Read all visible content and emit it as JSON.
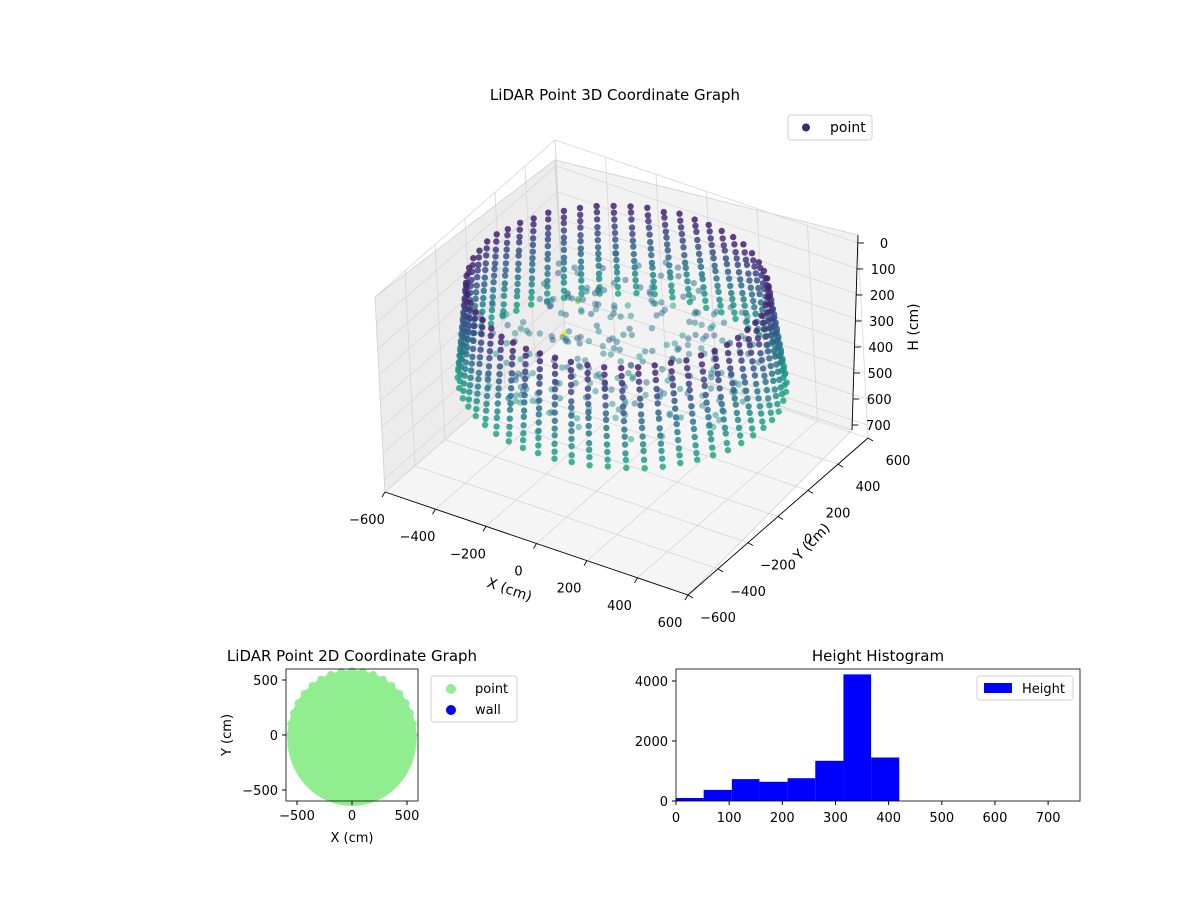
{
  "chart_data": [
    {
      "type": "scatter",
      "title": "LiDAR Point 3D Coordinate Graph",
      "xlabel": "X (cm)",
      "ylabel": "Y (cm)",
      "zlabel": "H (cm)",
      "xlim": [
        -600,
        600
      ],
      "ylim": [
        -600,
        600
      ],
      "zlim": [
        0,
        750
      ],
      "z_inverted": true,
      "x_ticks": [
        "−600",
        "−400",
        "−200",
        "0",
        "200",
        "400",
        "600"
      ],
      "y_ticks": [
        "−600",
        "−400",
        "−200",
        "0",
        "200",
        "400",
        "600"
      ],
      "z_ticks": [
        "0",
        "100",
        "200",
        "300",
        "400",
        "500",
        "600",
        "700"
      ],
      "colormap": "viridis",
      "legend": {
        "label": "point",
        "marker_color": "#3b2a7a",
        "position": "upper right"
      },
      "grid": true,
      "description_data": {
        "wall_radius_cm": 560,
        "height_range_cm": [
          60,
          420
        ]
      }
    },
    {
      "type": "scatter",
      "title": "LiDAR Point 2D Coordinate Graph",
      "xlabel": "X (cm)",
      "ylabel": "Y (cm)",
      "xlim": [
        -600,
        600
      ],
      "ylim": [
        -600,
        600
      ],
      "x_ticks": [
        "−500",
        "0",
        "500"
      ],
      "y_ticks": [
        "−500",
        "0",
        "500"
      ],
      "series": [
        {
          "name": "point",
          "color": "#90ee90"
        },
        {
          "name": "wall",
          "color": "#0000ff"
        }
      ],
      "legend_position": "outside right"
    },
    {
      "type": "bar",
      "title": "Height Histogram",
      "xlim": [
        0,
        760
      ],
      "ylim": [
        0,
        4400
      ],
      "x_ticks": [
        "0",
        "100",
        "200",
        "300",
        "400",
        "500",
        "600",
        "700"
      ],
      "y_ticks": [
        "0",
        "2000",
        "4000"
      ],
      "bin_edges": [
        0,
        52,
        105,
        157,
        210,
        262,
        315,
        367,
        420
      ],
      "values": [
        100,
        370,
        730,
        640,
        760,
        1340,
        4220,
        1450
      ],
      "series": [
        {
          "name": "Height",
          "color": "#0000ff"
        }
      ],
      "legend_position": "upper right"
    }
  ]
}
